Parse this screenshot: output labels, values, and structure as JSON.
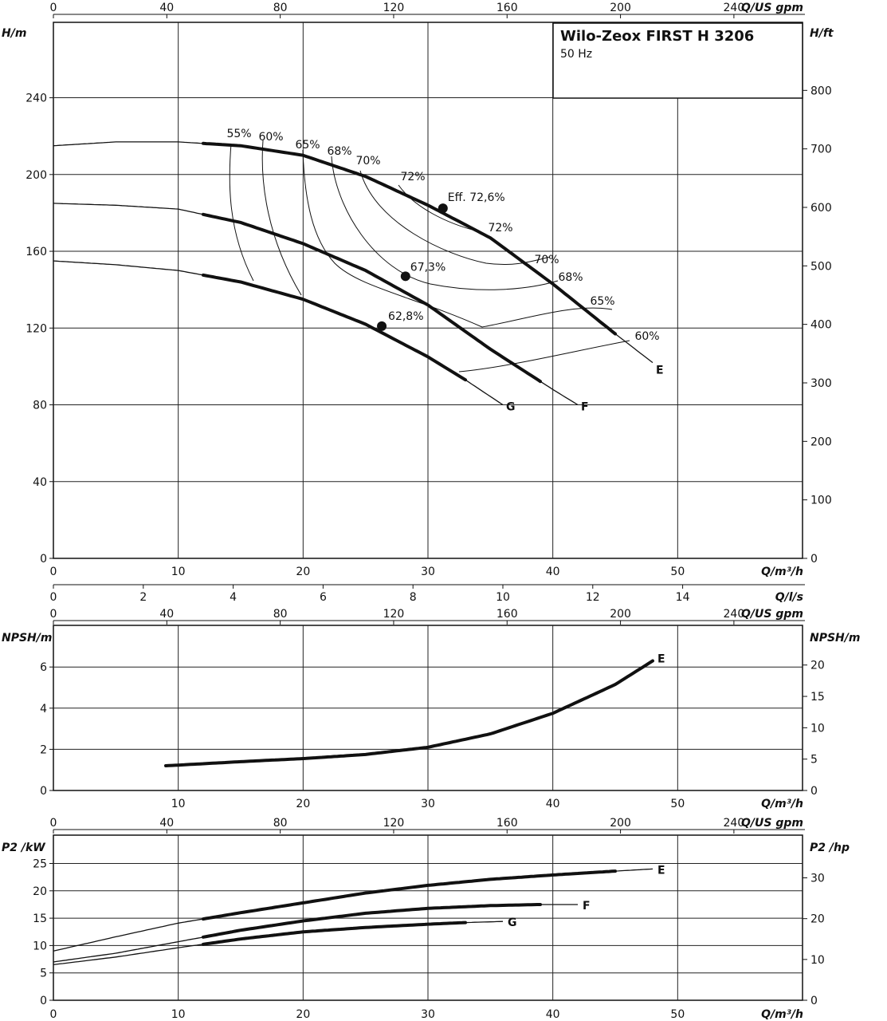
{
  "title": "Wilo-Zeox FIRST H 3206",
  "subtitle": "50 Hz",
  "chart_data": [
    {
      "id": "head",
      "type": "line",
      "xlabel": "Q/m³/h",
      "ylabel": "H/m",
      "ylabel_right": "H/ft",
      "xlim": [
        0,
        60
      ],
      "ylim": [
        0,
        250
      ],
      "x_ticks": [
        "0",
        "10",
        "20",
        "30",
        "40",
        "50"
      ],
      "y_ticks": [
        "0",
        "40",
        "80",
        "120",
        "160",
        "200",
        "240"
      ],
      "y2_ticks": [
        "0",
        "100",
        "200",
        "300",
        "400",
        "500",
        "600",
        "700",
        "800"
      ],
      "grid": true,
      "series": [
        {
          "name": "E",
          "x": [
            0,
            5,
            10,
            15,
            20,
            25,
            30,
            35,
            40,
            45,
            48
          ],
          "y": [
            215,
            217,
            217,
            215,
            210,
            199,
            184,
            167,
            143,
            117,
            102
          ],
          "bold_range": [
            12,
            45
          ]
        },
        {
          "name": "F",
          "x": [
            0,
            5,
            10,
            15,
            20,
            25,
            30,
            35,
            40,
            42
          ],
          "y": [
            185,
            184,
            182,
            175,
            164,
            150,
            132,
            109,
            88,
            80
          ],
          "bold_range": [
            12,
            39
          ]
        },
        {
          "name": "G",
          "x": [
            0,
            5,
            10,
            15,
            20,
            25,
            30,
            33,
            36
          ],
          "y": [
            155,
            153,
            150,
            144,
            135,
            122,
            105,
            93,
            80
          ],
          "bold_range": [
            12,
            33
          ]
        }
      ],
      "bep_points": [
        {
          "label": "Eff. 72,6%",
          "x": 31.2,
          "y": 182.4
        },
        {
          "label": "67,3%",
          "x": 28.2,
          "y": 147
        },
        {
          "label": "62,8%",
          "x": 26.3,
          "y": 121
        }
      ],
      "efficiency_labels": [
        "55%",
        "60%",
        "65%",
        "68%",
        "70%",
        "72%",
        "72%",
        "70%",
        "68%",
        "65%",
        "60%"
      ]
    },
    {
      "id": "flow_ls",
      "type": "axis",
      "xlabel": "Q/l/s",
      "xlim": [
        0,
        16.67
      ],
      "x_ticks": [
        "0",
        "2",
        "4",
        "6",
        "8",
        "10",
        "12",
        "14"
      ]
    },
    {
      "id": "npsh",
      "type": "line",
      "xlabel": "Q/m³/h",
      "ylabel": "NPSH/m",
      "ylabel_right": "NPSH/m",
      "xlim": [
        0,
        60
      ],
      "ylim": [
        0,
        8
      ],
      "x_ticks": [
        "10",
        "20",
        "30",
        "40",
        "50"
      ],
      "y_ticks": [
        "0",
        "2",
        "4",
        "6"
      ],
      "y2_ticks": [
        "0",
        "5",
        "10",
        "15",
        "20"
      ],
      "grid": true,
      "series": [
        {
          "name": "E",
          "x": [
            9,
            15,
            20,
            25,
            30,
            35,
            40,
            45,
            48
          ],
          "y": [
            1.2,
            1.4,
            1.55,
            1.75,
            2.1,
            2.75,
            3.75,
            5.15,
            6.3
          ]
        }
      ]
    },
    {
      "id": "power",
      "type": "line",
      "xlabel": "Q/m³/h",
      "ylabel": "P2 /kW",
      "ylabel_right": "P2 /hp",
      "xlim": [
        0,
        60
      ],
      "ylim": [
        0,
        28
      ],
      "x_ticks": [
        "0",
        "10",
        "20",
        "30",
        "40",
        "50"
      ],
      "y_ticks": [
        "0",
        "5",
        "10",
        "15",
        "20",
        "25"
      ],
      "y2_ticks": [
        "0",
        "10",
        "20",
        "30"
      ],
      "grid": true,
      "series": [
        {
          "name": "E",
          "x": [
            0,
            5,
            10,
            15,
            20,
            25,
            30,
            35,
            40,
            45,
            48
          ],
          "y": [
            9,
            11.6,
            14.1,
            16,
            17.8,
            19.6,
            21,
            22.1,
            22.9,
            23.6,
            24
          ],
          "bold_range": [
            12,
            45
          ]
        },
        {
          "name": "F",
          "x": [
            0,
            5,
            10,
            15,
            20,
            25,
            30,
            35,
            39,
            42
          ],
          "y": [
            7,
            8.6,
            10.7,
            12.8,
            14.5,
            15.9,
            16.8,
            17.3,
            17.5,
            17.5
          ],
          "bold_range": [
            12,
            39
          ]
        },
        {
          "name": "G",
          "x": [
            0,
            5,
            10,
            15,
            20,
            25,
            30,
            33,
            36
          ],
          "y": [
            6.5,
            7.9,
            9.6,
            11.2,
            12.5,
            13.3,
            13.9,
            14.2,
            14.4
          ],
          "bold_range": [
            12,
            33
          ]
        }
      ]
    }
  ],
  "top_axes": {
    "label": "Q/US gpm",
    "ticks": [
      "0",
      "40",
      "80",
      "120",
      "160",
      "200",
      "240"
    ]
  }
}
